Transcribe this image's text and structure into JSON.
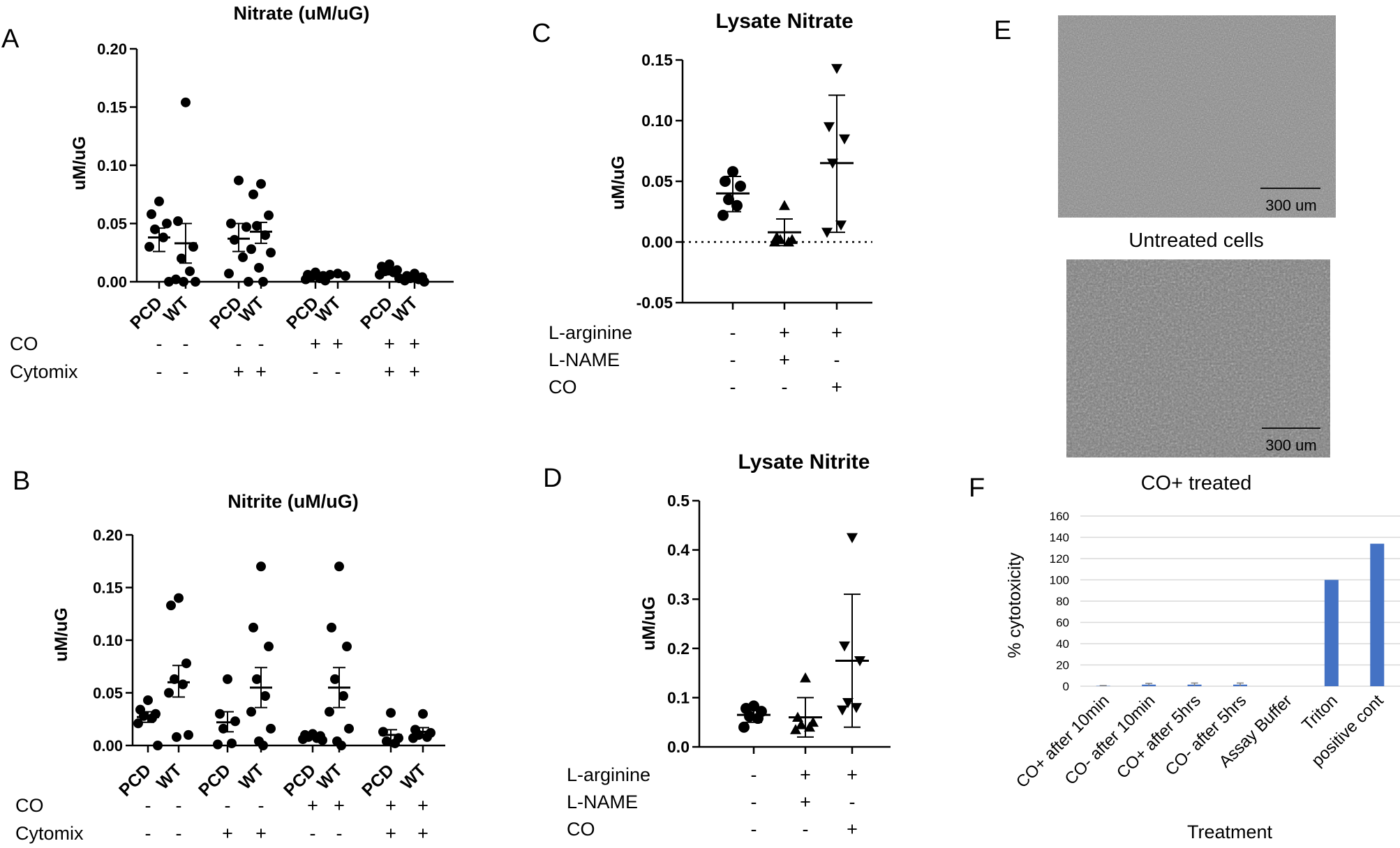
{
  "panels": {
    "A": {
      "letter": "A",
      "chart_ref": 0
    },
    "B": {
      "letter": "B",
      "chart_ref": 1
    },
    "C": {
      "letter": "C",
      "chart_ref": 2
    },
    "D": {
      "letter": "D",
      "chart_ref": 3
    },
    "E": {
      "letter": "E",
      "images": [
        {
          "caption": "Untreated cells",
          "scalebar": "300 um",
          "tone": "#8c8c8c"
        },
        {
          "caption": "CO+ treated",
          "scalebar": "300 um",
          "tone": "#7a7a7a"
        }
      ]
    },
    "F": {
      "letter": "F",
      "chart_ref": 4
    }
  },
  "chart_data": [
    {
      "type": "scatter",
      "title": "Nitrate (uM/uG)",
      "ylabel": "uM/uG",
      "ylim": [
        0,
        0.2
      ],
      "yticks": [
        "0.00",
        "0.05",
        "0.10",
        "0.15",
        "0.20"
      ],
      "categories": [
        "PCD",
        "WT",
        "PCD",
        "WT",
        "PCD",
        "WT",
        "PCD",
        "WT"
      ],
      "condition_rows": [
        {
          "label": "CO",
          "values": [
            "-",
            "-",
            "-",
            "-",
            "+",
            "+",
            "+",
            "+"
          ]
        },
        {
          "label": "Cytomix",
          "values": [
            "-",
            "-",
            "+",
            "+",
            "-",
            "-",
            "+",
            "+"
          ]
        }
      ],
      "groups": [
        {
          "points": [
            0.069,
            0.058,
            0.05,
            0.045,
            0.038,
            0.03,
            0.0
          ],
          "mean": 0.038,
          "sem_low": 0.026,
          "sem_high": 0.046
        },
        {
          "points": [
            0.154,
            0.052,
            0.03,
            0.02,
            0.009,
            0.002,
            0.0,
            0.0
          ],
          "mean": 0.033,
          "sem_low": 0.016,
          "sem_high": 0.05
        },
        {
          "points": [
            0.087,
            0.05,
            0.047,
            0.036,
            0.021,
            0.007,
            0.0
          ],
          "mean": 0.037,
          "sem_low": 0.026,
          "sem_high": 0.05
        },
        {
          "points": [
            0.084,
            0.075,
            0.057,
            0.048,
            0.04,
            0.028,
            0.025,
            0.012,
            0.0
          ],
          "mean": 0.043,
          "sem_low": 0.033,
          "sem_high": 0.051
        },
        {
          "points": [
            0.008,
            0.006,
            0.005,
            0.004,
            0.003,
            0.002,
            0.001
          ],
          "mean": 0.004,
          "sem_low": 0.002,
          "sem_high": 0.006
        },
        {
          "points": [
            0.007,
            0.006,
            0.005
          ],
          "mean": 0.006,
          "sem_low": 0.005,
          "sem_high": 0.007
        },
        {
          "points": [
            0.015,
            0.013,
            0.01,
            0.009,
            0.008,
            0.006,
            0.003
          ],
          "mean": 0.009,
          "sem_low": 0.006,
          "sem_high": 0.012
        },
        {
          "points": [
            0.007,
            0.005,
            0.004,
            0.003,
            0.002,
            0.001,
            0.0
          ],
          "mean": 0.003,
          "sem_low": 0.002,
          "sem_high": 0.005
        }
      ]
    },
    {
      "type": "scatter",
      "title": "Nitrite (uM/uG)",
      "ylabel": "uM/uG",
      "ylim": [
        0,
        0.2
      ],
      "yticks": [
        "0.00",
        "0.05",
        "0.10",
        "0.15",
        "0.20"
      ],
      "categories": [
        "PCD",
        "WT",
        "PCD",
        "WT",
        "PCD",
        "WT",
        "PCD",
        "WT"
      ],
      "condition_rows": [
        {
          "label": "CO",
          "values": [
            "-",
            "-",
            "-",
            "-",
            "+",
            "+",
            "+",
            "+"
          ]
        },
        {
          "label": "Cytomix",
          "values": [
            "-",
            "-",
            "+",
            "+",
            "-",
            "-",
            "+",
            "+"
          ]
        }
      ],
      "groups": [
        {
          "points": [
            0.043,
            0.034,
            0.03,
            0.028,
            0.026,
            0.021,
            0.0
          ],
          "mean": 0.027,
          "sem_low": 0.022,
          "sem_high": 0.032
        },
        {
          "points": [
            0.14,
            0.133,
            0.078,
            0.063,
            0.058,
            0.05,
            0.01,
            0.008
          ],
          "mean": 0.06,
          "sem_low": 0.046,
          "sem_high": 0.076
        },
        {
          "points": [
            0.063,
            0.03,
            0.023,
            0.016,
            0.002,
            0.001
          ],
          "mean": 0.022,
          "sem_low": 0.013,
          "sem_high": 0.032
        },
        {
          "points": [
            0.17,
            0.112,
            0.094,
            0.063,
            0.047,
            0.032,
            0.016,
            0.004,
            0.0
          ],
          "mean": 0.055,
          "sem_low": 0.036,
          "sem_high": 0.074
        },
        {
          "points": [
            0.011,
            0.01,
            0.009,
            0.008,
            0.007,
            0.006,
            0.005
          ],
          "mean": 0.008,
          "sem_low": 0.007,
          "sem_high": 0.009
        },
        {
          "points": [
            0.17,
            0.112,
            0.094,
            0.063,
            0.047,
            0.032,
            0.016,
            0.004,
            0.0
          ],
          "mean": 0.055,
          "sem_low": 0.036,
          "sem_high": 0.074
        },
        {
          "points": [
            0.031,
            0.013,
            0.007,
            0.004,
            0.002
          ],
          "mean": 0.01,
          "sem_low": 0.005,
          "sem_high": 0.015
        },
        {
          "points": [
            0.03,
            0.015,
            0.012,
            0.01,
            0.008,
            0.007
          ],
          "mean": 0.013,
          "sem_low": 0.01,
          "sem_high": 0.017
        }
      ]
    },
    {
      "type": "scatter",
      "title": "Lysate Nitrate",
      "ylabel": "uM/uG",
      "ylim": [
        -0.05,
        0.15
      ],
      "yticks": [
        "-0.05",
        "0.00",
        "0.05",
        "0.10",
        "0.15"
      ],
      "zero_line": "dotted",
      "condition_rows": [
        {
          "label": "L-arginine",
          "values": [
            "-",
            "+",
            "+"
          ]
        },
        {
          "label": "L-NAME",
          "values": [
            "-",
            "+",
            "-"
          ]
        },
        {
          "label": "CO",
          "values": [
            "-",
            "-",
            "+"
          ]
        }
      ],
      "groups": [
        {
          "marker": "circle",
          "points": [
            0.058,
            0.05,
            0.046,
            0.035,
            0.03,
            0.022
          ],
          "mean": 0.04,
          "sd_low": 0.025,
          "sd_high": 0.054
        },
        {
          "marker": "triangle-up",
          "points": [
            0.03,
            0.004,
            0.002,
            0.002,
            0.0,
            0.0
          ],
          "mean": 0.008,
          "sd_low": -0.003,
          "sd_high": 0.019
        },
        {
          "marker": "triangle-down",
          "points": [
            0.143,
            0.095,
            0.085,
            0.065,
            0.014,
            0.008
          ],
          "mean": 0.065,
          "sd_low": 0.008,
          "sd_high": 0.121
        }
      ]
    },
    {
      "type": "scatter",
      "title": "Lysate Nitrite",
      "ylabel": "uM/uG",
      "ylim": [
        0,
        0.5
      ],
      "yticks": [
        "0.0",
        "0.1",
        "0.2",
        "0.3",
        "0.4",
        "0.5"
      ],
      "condition_rows": [
        {
          "label": "L-arginine",
          "values": [
            "-",
            "+",
            "+"
          ]
        },
        {
          "label": "L-NAME",
          "values": [
            "-",
            "+",
            "-"
          ]
        },
        {
          "label": "CO",
          "values": [
            "-",
            "-",
            "+"
          ]
        }
      ],
      "groups": [
        {
          "marker": "circle",
          "points": [
            0.083,
            0.078,
            0.072,
            0.062,
            0.058,
            0.04
          ],
          "mean": 0.065,
          "sd_low": 0.05,
          "sd_high": 0.078
        },
        {
          "marker": "triangle-up",
          "points": [
            0.14,
            0.06,
            0.05,
            0.045,
            0.04,
            0.035
          ],
          "mean": 0.06,
          "sd_low": 0.02,
          "sd_high": 0.1
        },
        {
          "marker": "triangle-down",
          "points": [
            0.425,
            0.205,
            0.175,
            0.09,
            0.08,
            0.075
          ],
          "mean": 0.175,
          "sd_low": 0.04,
          "sd_high": 0.31
        }
      ]
    },
    {
      "type": "bar",
      "title": "",
      "xlabel": "Treatment",
      "ylabel": "% cytotoxicity",
      "ylim": [
        0,
        160
      ],
      "yticks": [
        "0",
        "20",
        "40",
        "60",
        "80",
        "100",
        "120",
        "140",
        "160"
      ],
      "grid": true,
      "categories": [
        "CO+ after 10min",
        "CO- after 10min",
        "CO+ after 5hrs",
        "CO- after 5hrs",
        "Assay Buffer",
        "Triton",
        "positive cont"
      ],
      "values": [
        0.3,
        1.5,
        1.5,
        1.5,
        0,
        100,
        134
      ],
      "errors": [
        0.3,
        1.2,
        1.5,
        1.5,
        0,
        0,
        0
      ],
      "bar_color": "#4472c4"
    }
  ]
}
